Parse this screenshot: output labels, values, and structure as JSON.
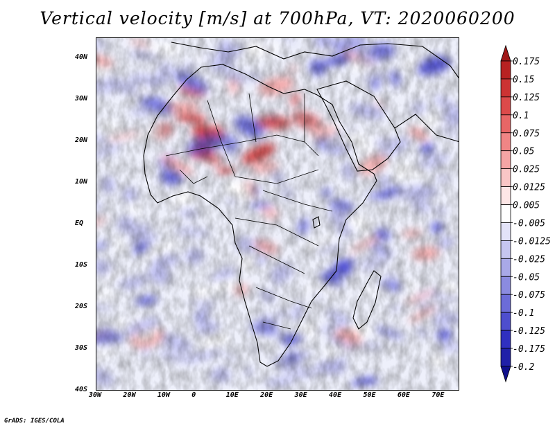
{
  "title": "Vertical velocity [m/s] at 700hPa, VT: 2020060200",
  "footer": "GrADS: IGES/COLA",
  "map": {
    "variable": "Vertical velocity",
    "units": "m/s",
    "level": "700hPa",
    "valid_time": "2020060200",
    "lon_range": [
      -30,
      76
    ],
    "lat_range": [
      -40,
      45
    ],
    "x_ticks": [
      {
        "lon": -30,
        "label": "30W"
      },
      {
        "lon": -20,
        "label": "20W"
      },
      {
        "lon": -10,
        "label": "10W"
      },
      {
        "lon": 0,
        "label": "0"
      },
      {
        "lon": 10,
        "label": "10E"
      },
      {
        "lon": 20,
        "label": "20E"
      },
      {
        "lon": 30,
        "label": "30E"
      },
      {
        "lon": 40,
        "label": "40E"
      },
      {
        "lon": 50,
        "label": "50E"
      },
      {
        "lon": 60,
        "label": "60E"
      },
      {
        "lon": 70,
        "label": "70E"
      }
    ],
    "y_ticks": [
      {
        "lat": 40,
        "label": "40N"
      },
      {
        "lat": 30,
        "label": "30N"
      },
      {
        "lat": 20,
        "label": "20N"
      },
      {
        "lat": 10,
        "label": "10N"
      },
      {
        "lat": 0,
        "label": "EQ"
      },
      {
        "lat": -10,
        "label": "10S"
      },
      {
        "lat": -20,
        "label": "20S"
      },
      {
        "lat": -30,
        "label": "30S"
      },
      {
        "lat": -40,
        "label": "40S"
      }
    ]
  },
  "colorbar": {
    "labels": [
      "0.175",
      "0.15",
      "0.125",
      "0.1",
      "0.075",
      "0.05",
      "0.025",
      "0.0125",
      "0.005",
      "-0.005",
      "-0.0125",
      "-0.025",
      "-0.05",
      "-0.075",
      "-0.1",
      "-0.125",
      "-0.175",
      "-0.2"
    ],
    "colors": [
      "#a01818",
      "#b82222",
      "#cc3333",
      "#dc4a4a",
      "#e86666",
      "#f08585",
      "#f5a5a5",
      "#f9c6c6",
      "#fde6e6",
      "#ffffff",
      "#e3e3f8",
      "#c6c6f0",
      "#a9a9e8",
      "#8b8be0",
      "#6c6cd8",
      "#4e4ece",
      "#3030c0",
      "#2020a8",
      "#10108c"
    ]
  },
  "colors": {
    "land_outline": "#000000",
    "up_strong": "#c82828",
    "up_weak": "#f2a0a0",
    "down_weak": "#b8b8ee",
    "down_strong": "#4a4ad0",
    "background": "#eef0fb"
  }
}
